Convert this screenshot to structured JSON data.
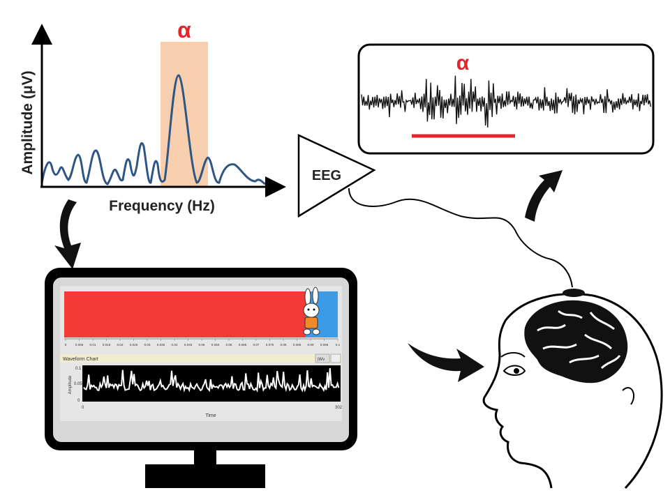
{
  "spectrum": {
    "y_label": "Amplitude (μV)",
    "x_label": "Frequency (Hz)",
    "band_symbol": "α",
    "band_color": "#f7cfae",
    "curve_color": "#2f5584"
  },
  "amplifier": {
    "label": "EEG"
  },
  "raw_eeg": {
    "band_symbol": "α",
    "marker_color": "#e3262c"
  },
  "monitor": {
    "feedback_bar_color": "#f23a36",
    "feedback_bar_end_color": "#3c9be6",
    "scale_ticks": [
      "0",
      "0.005",
      "0.01",
      "0.015",
      "0.02",
      "0.025",
      "0.03",
      "0.035",
      "0.04",
      "0.045",
      "0.05",
      "0.055",
      "0.06",
      "0.065",
      "0.07",
      "0.075",
      "0.08",
      "0.085",
      "0.09",
      "0.095",
      "0.1"
    ],
    "chart_title": "Waveform Chart",
    "chart_btn": "|Wv",
    "amp_label": "Amplitude",
    "y_ticks": [
      "0.1",
      "0.05",
      "0"
    ],
    "time_label": "Time",
    "x_start": "0",
    "x_end": "302"
  },
  "colors": {
    "alpha_text": "#e3262c",
    "stroke": "#000000"
  }
}
